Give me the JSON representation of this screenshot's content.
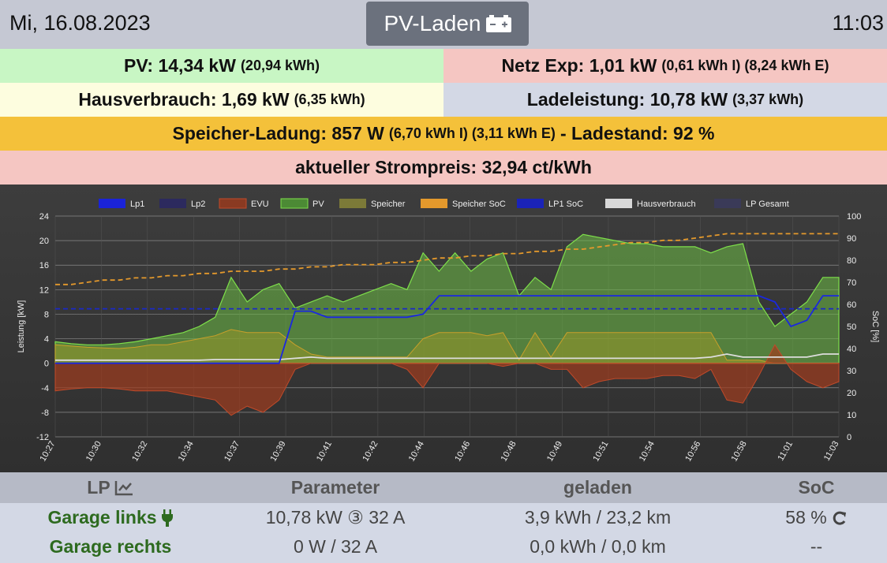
{
  "header": {
    "date": "Mi, 16.08.2023",
    "mode": "PV-Laden",
    "time": "11:03"
  },
  "summary": {
    "pv": {
      "label": "PV: 14,34 kW",
      "detail": "(20,94 kWh)",
      "color": "#c8f6c4"
    },
    "netz": {
      "label": "Netz Exp: 1,01 kW",
      "detail": "(0,61 kWh I) (8,24 kWh E)",
      "color": "#f5c6c2"
    },
    "haus": {
      "label": "Hausverbrauch: 1,69 kW",
      "detail": "(6,35 kWh)",
      "color": "#fdfddf"
    },
    "lade": {
      "label": "Ladeleistung: 10,78 kW",
      "detail": "(3,37 kWh)",
      "color": "#d3d8e5"
    },
    "speicher": {
      "label": "Speicher-Ladung: 857 W",
      "detail": "(6,70 kWh I) (3,11 kWh E)",
      "suffix": "- Ladestand: 92 %",
      "color": "#f4c13a"
    },
    "preis": {
      "label": "aktueller Strompreis: 32,94 ct/kWh",
      "color": "#f5c6c2"
    }
  },
  "chart_data": {
    "type": "area",
    "ylabel": "Leistung [kW]",
    "y2label": "SoC [%]",
    "ylim": [
      -12,
      24
    ],
    "y2lim": [
      0,
      100
    ],
    "yticks": [
      24,
      20,
      16,
      12,
      8,
      4,
      0,
      -4,
      -8,
      -12
    ],
    "y2ticks": [
      100,
      90,
      80,
      70,
      60,
      50,
      40,
      30,
      20,
      10,
      0
    ],
    "xticks": [
      "10:27",
      "10:30",
      "10:32",
      "10:34",
      "10:37",
      "10:39",
      "10:41",
      "10:42",
      "10:44",
      "10:46",
      "10:48",
      "10:49",
      "10:51",
      "10:54",
      "10:56",
      "10:58",
      "11:01",
      "11:03"
    ],
    "legend": [
      {
        "name": "Lp1",
        "color": "#1a23d8"
      },
      {
        "name": "Lp2",
        "color": "#2c2a5e"
      },
      {
        "name": "EVU",
        "color": "#8a3a22"
      },
      {
        "name": "PV",
        "color": "#4c8a35"
      },
      {
        "name": "Speicher",
        "color": "#7c7a38"
      },
      {
        "name": "Speicher SoC",
        "color": "#e4992c"
      },
      {
        "name": "LP1 SoC",
        "color": "#1a23b8"
      },
      {
        "name": "Hausverbrauch",
        "color": "#d8d8d8"
      },
      {
        "name": "LP Gesamt",
        "color": "#3a3a58"
      }
    ],
    "series": {
      "PV": [
        3.5,
        3.2,
        3,
        3,
        3.2,
        3.5,
        4,
        4.5,
        5,
        6,
        7.5,
        14,
        10,
        12,
        13,
        9,
        10,
        11,
        10,
        11,
        12,
        13,
        12,
        18,
        15,
        18,
        15,
        17,
        18,
        11,
        14,
        12,
        19,
        21,
        20.5,
        20,
        19.5,
        19.5,
        19,
        19,
        19,
        18,
        19,
        19.5,
        10,
        6,
        8,
        10,
        14,
        14
      ],
      "Speicher": [
        3,
        2.8,
        2.6,
        2.5,
        2.4,
        2.6,
        3,
        3,
        3.5,
        4,
        4.5,
        5.5,
        5,
        5,
        5,
        3,
        1.5,
        1,
        1,
        1,
        1,
        1,
        1,
        4,
        5,
        5,
        5,
        4.5,
        5,
        0.5,
        5,
        1,
        5,
        5,
        5,
        5,
        5,
        5,
        5,
        5,
        5,
        5,
        0.5,
        0.5,
        0.5,
        0,
        0,
        0,
        0,
        0
      ],
      "EVU": [
        -4.5,
        -4.2,
        -4,
        -4,
        -4.2,
        -4.5,
        -4.5,
        -4.5,
        -5,
        -5.5,
        -6,
        -8.5,
        -7,
        -8,
        -6,
        -1,
        0,
        0,
        0,
        0,
        0,
        0,
        -1,
        -4,
        0,
        0,
        0,
        0,
        -0.5,
        0,
        0,
        -1,
        -1,
        -4,
        -3,
        -2.5,
        -2.5,
        -2.5,
        -2,
        -2,
        -2.5,
        -1,
        -6,
        -6.5,
        -2,
        3,
        -1,
        -3,
        -4,
        -3
      ],
      "Hausverbrauch": [
        0.5,
        0.5,
        0.5,
        0.5,
        0.5,
        0.5,
        0.5,
        0.5,
        0.5,
        0.5,
        0.6,
        0.6,
        0.6,
        0.6,
        0.6,
        0.8,
        1,
        0.8,
        0.8,
        0.8,
        0.8,
        0.8,
        0.8,
        0.8,
        0.8,
        0.8,
        0.8,
        0.8,
        0.8,
        0.8,
        0.8,
        0.8,
        0.8,
        0.8,
        0.8,
        0.8,
        0.8,
        0.8,
        0.8,
        0.8,
        0.8,
        1,
        1.5,
        1,
        1,
        1,
        1,
        1,
        1.5,
        1.5
      ],
      "Lp1": [
        0,
        0,
        0,
        0,
        0,
        0,
        0,
        0,
        0,
        0,
        0,
        0,
        0,
        0,
        0,
        8.5,
        8.5,
        7.5,
        7.5,
        7.5,
        7.5,
        7.5,
        7.5,
        8,
        11,
        11,
        11,
        11,
        11,
        11,
        11,
        11,
        11,
        11,
        11,
        11,
        11,
        11,
        11,
        11,
        11,
        11,
        11,
        11,
        11,
        10,
        6,
        7,
        11,
        11
      ],
      "Speicher SoC": [
        69,
        69,
        70,
        71,
        71,
        72,
        72,
        73,
        73,
        74,
        74,
        75,
        75,
        75,
        76,
        76,
        77,
        77,
        78,
        78,
        78,
        79,
        79,
        80,
        81,
        81,
        82,
        82,
        83,
        83,
        84,
        84,
        85,
        85,
        86,
        87,
        88,
        88,
        89,
        89,
        90,
        91,
        92,
        92,
        92,
        92,
        92,
        92,
        92,
        92
      ],
      "LP1 SoC": [
        58,
        58,
        58,
        58,
        58,
        58,
        58,
        58,
        58,
        58,
        58,
        58,
        58,
        58,
        58,
        58,
        58,
        58,
        58,
        58,
        58,
        58,
        58,
        58,
        58,
        58,
        58,
        58,
        58,
        58,
        58,
        58,
        58,
        58,
        58,
        58,
        58,
        58,
        58,
        58,
        58,
        58,
        58,
        58,
        58,
        58,
        58,
        58,
        58,
        58
      ]
    }
  },
  "table": {
    "headers": [
      "LP",
      "Parameter",
      "geladen",
      "SoC"
    ],
    "rows": [
      {
        "name": "Garage links",
        "param": "10,78 kW ③ 32 A",
        "charged": "3,9 kWh / 23,2 km",
        "soc": "58 %"
      },
      {
        "name": "Garage rechts",
        "param": "0 W / 32 A",
        "charged": "0,0 kWh / 0,0 km",
        "soc": "--"
      }
    ]
  }
}
